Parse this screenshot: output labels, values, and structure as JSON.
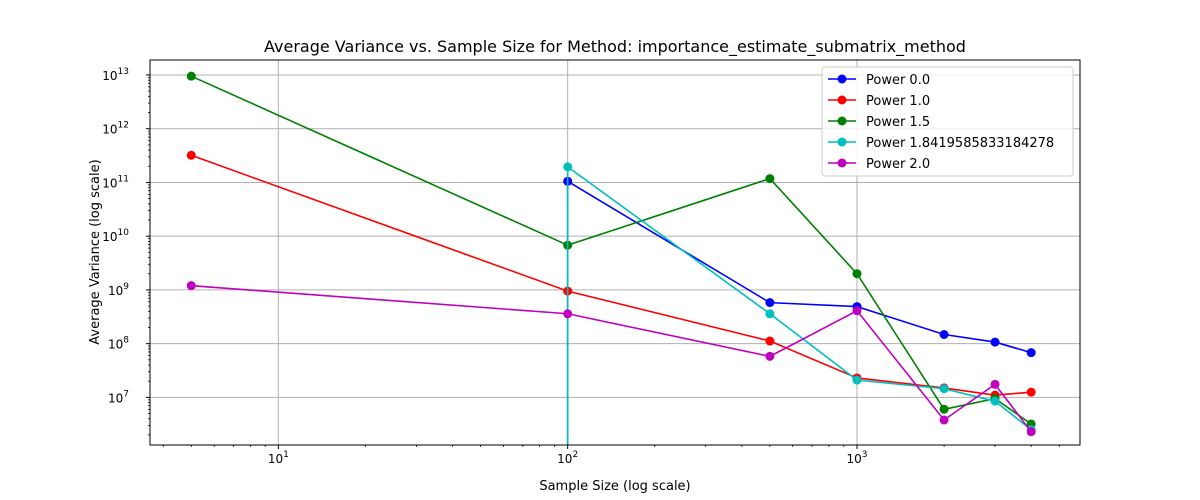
{
  "chart_data": {
    "type": "line",
    "title": "Average Variance vs. Sample Size for Method: importance_estimate_submatrix_method",
    "xlabel": "Sample Size (log scale)",
    "ylabel": "Average Variance (log scale)",
    "xscale": "log",
    "yscale": "log",
    "xlim": [
      3.6,
      5900
    ],
    "ylim": [
      1300000,
      19000000000000
    ],
    "grid": true,
    "legend_position": "top-right",
    "x_ticks": [
      {
        "value": 10,
        "base": "10",
        "exp": "1"
      },
      {
        "value": 100,
        "base": "10",
        "exp": "2"
      },
      {
        "value": 1000,
        "base": "10",
        "exp": "3"
      }
    ],
    "y_ticks": [
      {
        "value": 10000000,
        "base": "10",
        "exp": "7"
      },
      {
        "value": 100000000,
        "base": "10",
        "exp": "8"
      },
      {
        "value": 1000000000,
        "base": "10",
        "exp": "9"
      },
      {
        "value": 10000000000,
        "base": "10",
        "exp": "10"
      },
      {
        "value": 100000000000,
        "base": "10",
        "exp": "11"
      },
      {
        "value": 1000000000000,
        "base": "10",
        "exp": "12"
      },
      {
        "value": 10000000000000,
        "base": "10",
        "exp": "13"
      }
    ],
    "series": [
      {
        "name": "Power 0.0",
        "color": "#0000ff",
        "points": [
          [
            100,
            0
          ],
          [
            100,
            105000000000
          ],
          [
            500,
            580000000
          ],
          [
            1000,
            490000000
          ],
          [
            2000,
            148000000
          ],
          [
            3000,
            107000000
          ],
          [
            4000,
            68000000
          ]
        ]
      },
      {
        "name": "Power 1.0",
        "color": "#ff0000",
        "points": [
          [
            5,
            320000000000
          ],
          [
            100,
            950000000
          ],
          [
            500,
            112000000
          ],
          [
            1000,
            23000000
          ],
          [
            2000,
            15000000
          ],
          [
            3000,
            11000000
          ],
          [
            4000,
            12500000
          ]
        ]
      },
      {
        "name": "Power 1.5",
        "color": "#008000",
        "points": [
          [
            5,
            9500000000000
          ],
          [
            100,
            6800000000
          ],
          [
            500,
            118000000000
          ],
          [
            1000,
            2000000000
          ],
          [
            2000,
            6000000
          ],
          [
            3000,
            9500000
          ],
          [
            4000,
            3200000
          ]
        ]
      },
      {
        "name": "Power 1.8419585833184278",
        "color": "#00bfbf",
        "points": [
          [
            100,
            0
          ],
          [
            100,
            195000000000
          ],
          [
            500,
            360000000
          ],
          [
            1000,
            21000000
          ],
          [
            2000,
            14500000
          ],
          [
            3000,
            8500000
          ],
          [
            4000,
            2500000
          ]
        ]
      },
      {
        "name": "Power 2.0",
        "color": "#bf00bf",
        "points": [
          [
            5,
            1200000000
          ],
          [
            100,
            360000000
          ],
          [
            500,
            58000000
          ],
          [
            1000,
            410000000
          ],
          [
            2000,
            3800000
          ],
          [
            3000,
            17500000
          ],
          [
            4000,
            2300000
          ]
        ]
      }
    ]
  }
}
